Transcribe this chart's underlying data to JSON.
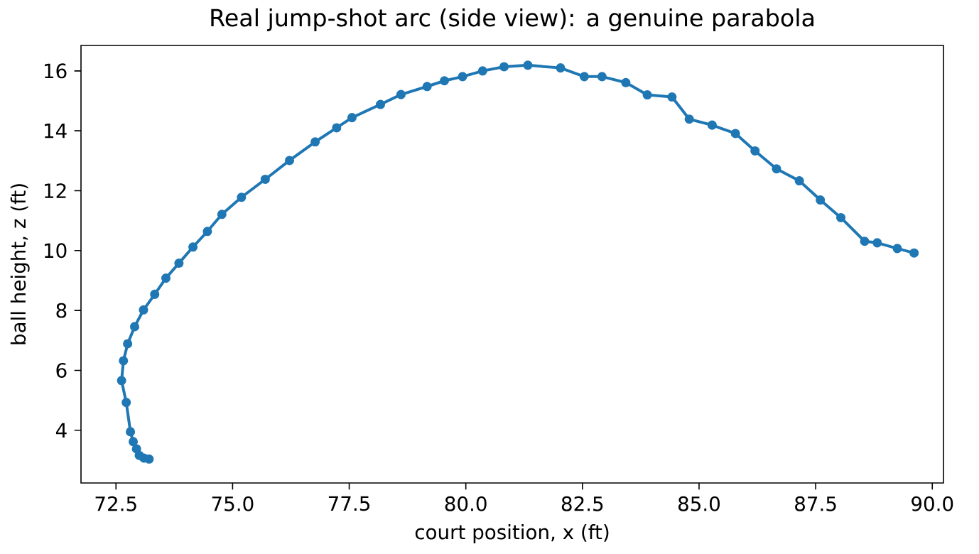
{
  "chart_data": {
    "type": "line",
    "title": "Real jump-shot arc (side view): a genuine parabola",
    "xlabel": "court position, x (ft)",
    "ylabel": "ball height, z (ft)",
    "x": [
      73.21,
      73.1,
      73.0,
      72.94,
      72.87,
      72.81,
      72.72,
      72.62,
      72.66,
      72.75,
      72.9,
      73.09,
      73.33,
      73.57,
      73.85,
      74.15,
      74.46,
      74.77,
      75.19,
      75.7,
      76.22,
      76.77,
      77.23,
      77.56,
      78.17,
      78.61,
      79.17,
      79.54,
      79.93,
      80.36,
      80.82,
      81.33,
      82.03,
      82.54,
      82.92,
      83.43,
      83.89,
      84.42,
      84.79,
      85.28,
      85.78,
      86.2,
      86.66,
      87.15,
      87.6,
      88.04,
      88.55,
      88.82,
      89.25,
      89.61
    ],
    "values": [
      3.04,
      3.07,
      3.16,
      3.38,
      3.62,
      3.95,
      4.93,
      5.66,
      6.32,
      6.89,
      7.46,
      8.02,
      8.54,
      9.08,
      9.58,
      10.12,
      10.64,
      11.21,
      11.78,
      12.38,
      13.01,
      13.63,
      14.1,
      14.44,
      14.88,
      15.21,
      15.48,
      15.67,
      15.81,
      16.0,
      16.14,
      16.19,
      16.1,
      15.81,
      15.81,
      15.61,
      15.2,
      15.13,
      14.39,
      14.19,
      13.91,
      13.33,
      12.73,
      12.33,
      11.69,
      11.1,
      10.31,
      10.26,
      10.07,
      9.92
    ],
    "color": "#1f77b4",
    "marker": "circle",
    "xlim": [
      71.75,
      90.24
    ],
    "ylim": [
      2.24,
      16.85
    ],
    "xticks": [
      {
        "value": 72.5,
        "label": "72.5"
      },
      {
        "value": 75,
        "label": "75.0"
      },
      {
        "value": 77.5,
        "label": "77.5"
      },
      {
        "value": 80,
        "label": "80.0"
      },
      {
        "value": 82.5,
        "label": "82.5"
      },
      {
        "value": 85,
        "label": "85.0"
      },
      {
        "value": 87.5,
        "label": "87.5"
      },
      {
        "value": 90,
        "label": "90.0"
      }
    ],
    "yticks": [
      4,
      6,
      8,
      10,
      12,
      14,
      16
    ]
  }
}
